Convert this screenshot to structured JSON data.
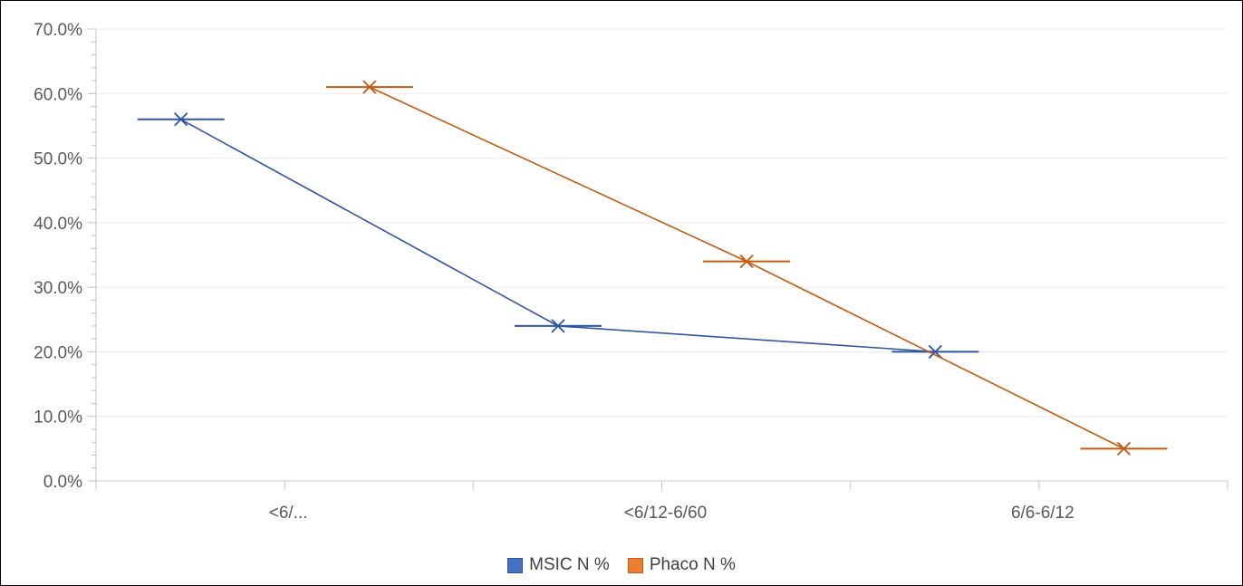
{
  "chart_data": {
    "type": "line",
    "categories": [
      "<6/...",
      "<6/12-6/60",
      "6/6-6/12"
    ],
    "ylim": [
      0,
      70
    ],
    "y_ticks": [
      "0.0%",
      "10.0%",
      "20.0%",
      "30.0%",
      "40.0%",
      "50.0%",
      "60.0%",
      "70.0%"
    ],
    "grid": true,
    "legend_position": "bottom",
    "series": [
      {
        "name": "MSIC  N %",
        "values": [
          56,
          24,
          20
        ],
        "color": "#4472C4",
        "line_color": "#2F55A4"
      },
      {
        "name": "Phaco  N %",
        "values": [
          61,
          34,
          5
        ],
        "color": "#ED7D31",
        "line_color": "#C55A11"
      }
    ]
  }
}
